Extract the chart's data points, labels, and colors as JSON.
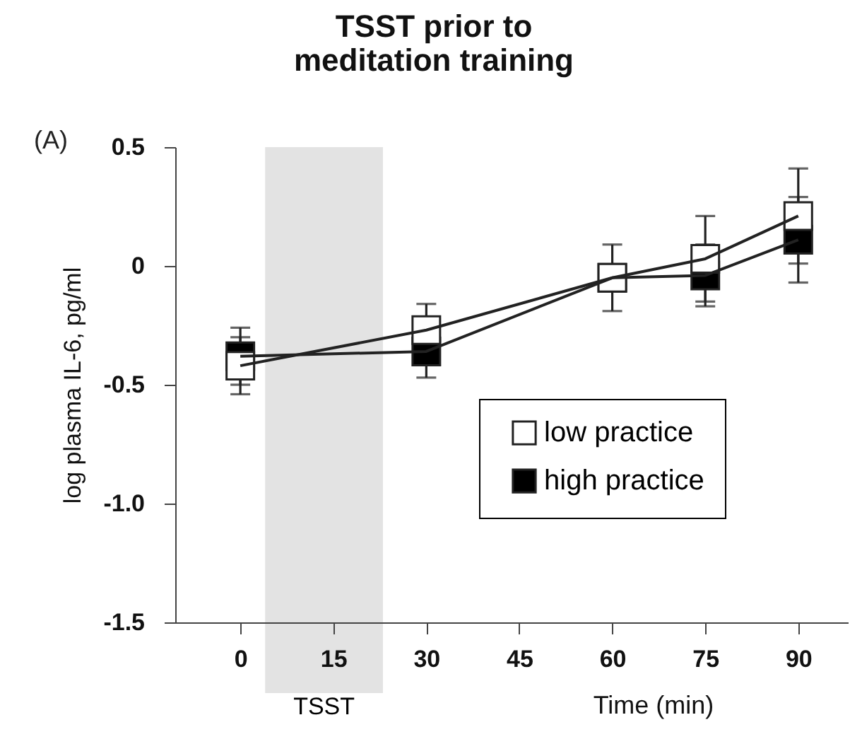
{
  "chart_data": {
    "type": "line",
    "title": "TSST prior to\nmeditation training",
    "xlabel": "Time (min)",
    "ylabel": "log plasma IL-6, pg/ml",
    "annotations": [
      "(A)"
    ],
    "x": [
      0,
      30,
      60,
      75,
      90
    ],
    "series": [
      {
        "name": "low practice",
        "color": "#ffffff",
        "values": [
          -0.42,
          -0.27,
          -0.05,
          0.03,
          0.21
        ],
        "errors": [
          0.12,
          0.11,
          0.14,
          0.18,
          0.2
        ]
      },
      {
        "name": "high practice",
        "color": "#000000",
        "values": [
          -0.38,
          -0.36,
          -0.05,
          -0.04,
          0.11
        ],
        "errors": [
          0.12,
          0.11,
          0.14,
          0.13,
          0.18
        ]
      }
    ],
    "xlim": [
      -10.5,
      98
    ],
    "xticks": [
      0,
      15,
      30,
      45,
      60,
      75,
      90
    ],
    "ylim": [
      -1.5,
      0.5
    ],
    "yticks": [
      0.5,
      0,
      -0.5,
      {
        "value": -1,
        "label": "-1.0"
      },
      -1.5
    ],
    "bands": [
      {
        "axis": "x",
        "from": 4,
        "to": 23,
        "label": "TSST",
        "color": "#e3e3e3"
      }
    ],
    "grid": false,
    "legend": "right",
    "marker": "square",
    "line_style": "solid"
  }
}
